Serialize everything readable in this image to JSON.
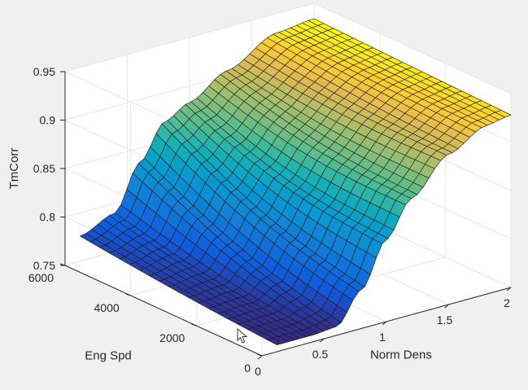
{
  "chart_data": {
    "type": "surface",
    "title": "",
    "xlabel": "Norm Dens",
    "ylabel": "Eng Spd",
    "zlabel": "TmCorr",
    "xlim": [
      0,
      2
    ],
    "ylim": [
      0,
      6000
    ],
    "zlim": [
      0.75,
      0.95
    ],
    "x_ticks": [
      "0",
      "0.5",
      "1",
      "1.5",
      "2"
    ],
    "y_ticks": [
      "0",
      "2000",
      "4000",
      "6000"
    ],
    "z_ticks": [
      "0.75",
      "0.8",
      "0.85",
      "0.9",
      "0.95"
    ],
    "grid": true,
    "colormap": "parula",
    "x_range_data": [
      0.12,
      2.0
    ],
    "y_range_data": [
      0,
      6000
    ],
    "corner_values": {
      "x0_y0": 0.757,
      "x0_y6000": 0.776,
      "x2_y0": 0.928,
      "x2_y6000": 0.934
    },
    "profile_along_x_at_y0": [
      {
        "x": 0.12,
        "z": 0.757
      },
      {
        "x": 0.4,
        "z": 0.757
      },
      {
        "x": 0.6,
        "z": 0.759
      },
      {
        "x": 0.8,
        "z": 0.79
      },
      {
        "x": 1.0,
        "z": 0.835
      },
      {
        "x": 1.2,
        "z": 0.87
      },
      {
        "x": 1.5,
        "z": 0.905
      },
      {
        "x": 1.8,
        "z": 0.924
      },
      {
        "x": 2.0,
        "z": 0.928
      }
    ],
    "profile_along_x_at_y6000": [
      {
        "x": 0.12,
        "z": 0.776
      },
      {
        "x": 0.4,
        "z": 0.79
      },
      {
        "x": 0.6,
        "z": 0.835
      },
      {
        "x": 0.8,
        "z": 0.87
      },
      {
        "x": 1.0,
        "z": 0.883
      },
      {
        "x": 1.3,
        "z": 0.905
      },
      {
        "x": 1.7,
        "z": 0.93
      },
      {
        "x": 2.0,
        "z": 0.934
      }
    ]
  }
}
